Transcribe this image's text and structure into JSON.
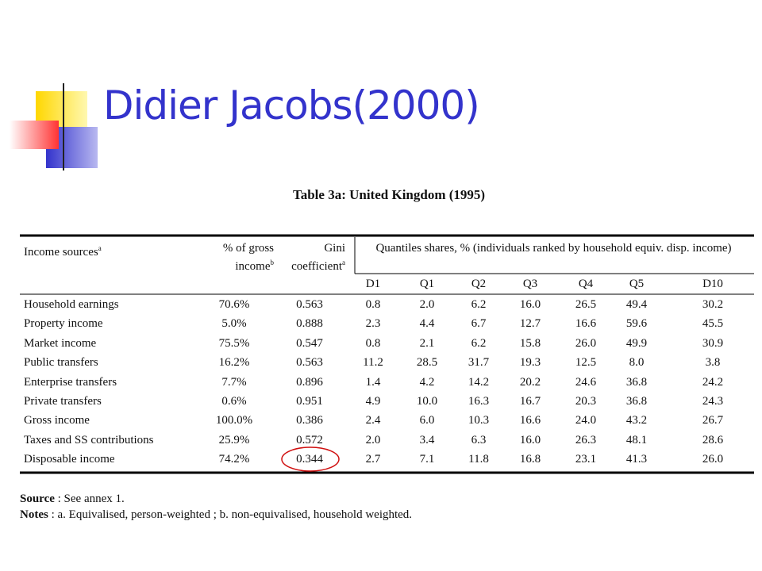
{
  "slide": {
    "title": "Didier Jacobs(2000)"
  },
  "table": {
    "caption": "Table 3a: United Kingdom (1995)",
    "header": [
      {
        "text": "Income sources",
        "note": "a"
      },
      {
        "text": "% of gross income",
        "note": "b"
      },
      {
        "text": "Gini coefficient",
        "note": "a"
      },
      {
        "text": "Quantiles shares, % (individuals ranked by household equiv. disp. income)"
      }
    ],
    "subheader": [
      "D1",
      "Q1",
      "Q2",
      "Q3",
      "Q4",
      "Q5",
      "D10"
    ],
    "rows": [
      [
        "Household earnings",
        "70.6%",
        "0.563",
        "0.8",
        "2.0",
        "6.2",
        "16.0",
        "26.5",
        "49.4",
        "30.2"
      ],
      [
        "Property income",
        "5.0%",
        "0.888",
        "2.3",
        "4.4",
        "6.7",
        "12.7",
        "16.6",
        "59.6",
        "45.5"
      ],
      [
        "Market income",
        "75.5%",
        "0.547",
        "0.8",
        "2.1",
        "6.2",
        "15.8",
        "26.0",
        "49.9",
        "30.9"
      ],
      [
        "Public transfers",
        "16.2%",
        "0.563",
        "11.2",
        "28.5",
        "31.7",
        "19.3",
        "12.5",
        "8.0",
        "3.8"
      ],
      [
        "Enterprise transfers",
        "7.7%",
        "0.896",
        "1.4",
        "4.2",
        "14.2",
        "20.2",
        "24.6",
        "36.8",
        "24.2"
      ],
      [
        "Private transfers",
        "0.6%",
        "0.951",
        "4.9",
        "10.0",
        "16.3",
        "16.7",
        "20.3",
        "36.8",
        "24.3"
      ],
      [
        "Gross income",
        "100.0%",
        "0.386",
        "2.4",
        "6.0",
        "10.3",
        "16.6",
        "24.0",
        "43.2",
        "26.7"
      ],
      [
        "Taxes and SS contributions",
        "25.9%",
        "0.572",
        "2.0",
        "3.4",
        "6.3",
        "16.0",
        "26.3",
        "48.1",
        "28.6"
      ],
      [
        "Disposable income",
        "74.2%",
        "0.344",
        "2.7",
        "7.1",
        "11.8",
        "16.8",
        "23.1",
        "41.3",
        "26.0"
      ]
    ],
    "source": {
      "label": "Source",
      "text": ": See annex 1."
    },
    "notes": {
      "label": "Notes",
      "text": ": a. Equivalised, person-weighted ; b. non-equivalised, household weighted."
    }
  }
}
